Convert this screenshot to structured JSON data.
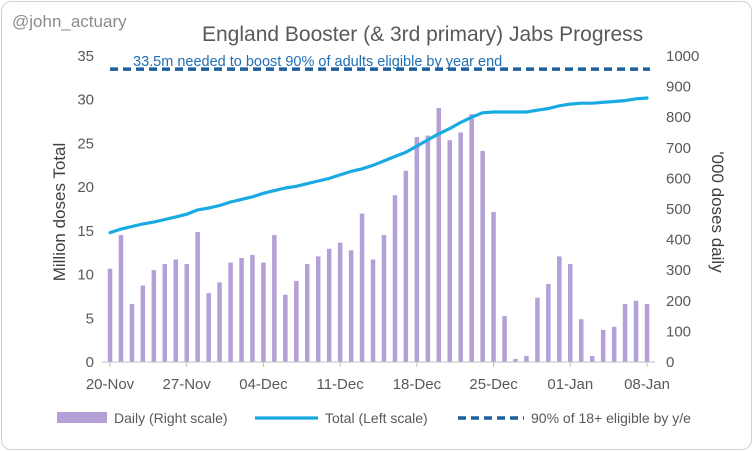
{
  "chart_data": {
    "type": "bar+line",
    "title": "England Booster (& 3rd primary) Jabs Progress",
    "watermark": "@john_actuary",
    "annotation": "33.5m needed to boost 90% of adults eligible by year end",
    "ylabel_left": "Million doses Total",
    "ylabel_right": "'000 doses daily",
    "ylim_left": [
      0,
      35
    ],
    "ylim_right": [
      0,
      1000
    ],
    "yticks_left": [
      "0",
      "5",
      "10",
      "15",
      "20",
      "25",
      "30",
      "35"
    ],
    "yticks_right": [
      "0",
      "100",
      "200",
      "300",
      "400",
      "500",
      "600",
      "700",
      "800",
      "900",
      "1000"
    ],
    "xticks": [
      "20-Nov",
      "27-Nov",
      "04-Dec",
      "11-Dec",
      "18-Dec",
      "25-Dec",
      "01-Jan",
      "08-Jan"
    ],
    "dates": [
      "20-Nov",
      "21-Nov",
      "22-Nov",
      "23-Nov",
      "24-Nov",
      "25-Nov",
      "26-Nov",
      "27-Nov",
      "28-Nov",
      "29-Nov",
      "30-Nov",
      "01-Dec",
      "02-Dec",
      "03-Dec",
      "04-Dec",
      "05-Dec",
      "06-Dec",
      "07-Dec",
      "08-Dec",
      "09-Dec",
      "10-Dec",
      "11-Dec",
      "12-Dec",
      "13-Dec",
      "14-Dec",
      "15-Dec",
      "16-Dec",
      "17-Dec",
      "18-Dec",
      "19-Dec",
      "20-Dec",
      "21-Dec",
      "22-Dec",
      "23-Dec",
      "24-Dec",
      "25-Dec",
      "26-Dec",
      "27-Dec",
      "28-Dec",
      "29-Dec",
      "30-Dec",
      "31-Dec",
      "01-Jan",
      "02-Jan",
      "03-Jan",
      "04-Jan",
      "05-Jan",
      "06-Jan",
      "07-Jan",
      "08-Jan"
    ],
    "series": [
      {
        "name": "Daily (Right scale)",
        "type": "bar",
        "axis": "right",
        "color": "#b4a0d6",
        "values": [
          305,
          415,
          190,
          250,
          300,
          320,
          335,
          320,
          425,
          225,
          260,
          325,
          340,
          350,
          325,
          415,
          220,
          265,
          320,
          345,
          370,
          390,
          365,
          485,
          335,
          415,
          545,
          625,
          735,
          740,
          830,
          725,
          750,
          810,
          690,
          490,
          150,
          10,
          20,
          210,
          255,
          345,
          320,
          140,
          20,
          105,
          115,
          190,
          200,
          190
        ]
      },
      {
        "name": "Total (Left scale)",
        "type": "line",
        "axis": "left",
        "color": "#1aaae3",
        "values": [
          14.8,
          15.2,
          15.5,
          15.8,
          16.0,
          16.3,
          16.6,
          16.9,
          17.4,
          17.6,
          17.9,
          18.3,
          18.6,
          18.9,
          19.3,
          19.6,
          19.9,
          20.1,
          20.4,
          20.7,
          21.0,
          21.4,
          21.8,
          22.1,
          22.5,
          23.0,
          23.5,
          24.0,
          24.7,
          25.4,
          26.1,
          26.7,
          27.4,
          28.0,
          28.5,
          28.6,
          28.6,
          28.6,
          28.6,
          28.8,
          29.0,
          29.3,
          29.5,
          29.6,
          29.6,
          29.7,
          29.8,
          29.9,
          30.1,
          30.2
        ]
      },
      {
        "name": "90% of 18+ eligible by y/e",
        "type": "hline",
        "axis": "left",
        "color": "#1f5f9e",
        "value": 33.5
      }
    ],
    "legend": [
      "Daily (Right scale)",
      "Total (Left scale)",
      "90% of 18+ eligible by y/e"
    ],
    "legend_position": "bottom",
    "grid": false
  }
}
